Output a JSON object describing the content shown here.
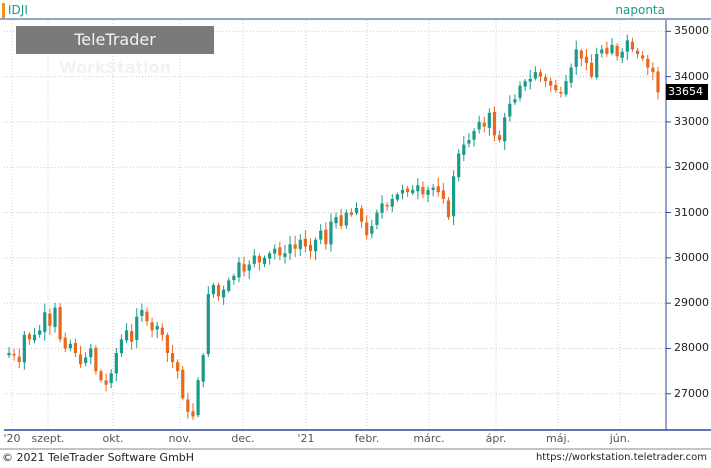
{
  "header": {
    "symbol": "IDJI",
    "period": "naponta",
    "logo_regular": "TeleTrader ",
    "logo_bold": "WorkStation"
  },
  "footer": {
    "copyright": "© 2021 TeleTrader Software GmbH",
    "url": "https://workstation.teletrader.com"
  },
  "colors": {
    "up": "#1a9a8a",
    "down": "#e8681e",
    "grid": "#cccccc",
    "axis": "#2b4a9a"
  },
  "chart_data": {
    "type": "candlestick",
    "y_axis_position": "right",
    "ylim": [
      26200,
      35250
    ],
    "yticks": [
      27000,
      28000,
      29000,
      30000,
      31000,
      32000,
      33000,
      34000,
      35000
    ],
    "ytick_labels": [
      "27000",
      "28000",
      "29000",
      "30000",
      "31000",
      "32000",
      "33000",
      "34000",
      "35000"
    ],
    "x_tick_labels": [
      "'20",
      "szept.",
      "okt.",
      "nov.",
      "dec.",
      "'21",
      "febr.",
      "márc.",
      "ápr.",
      "máj.",
      "jún."
    ],
    "last_value": 33654,
    "last_value_label": "33654",
    "closes": [
      27900,
      27850,
      27700,
      28300,
      28200,
      28300,
      28400,
      28800,
      28500,
      28900,
      28200,
      28000,
      28100,
      27900,
      27650,
      27800,
      28000,
      27500,
      27300,
      27200,
      27450,
      27900,
      28200,
      28400,
      28150,
      28700,
      28850,
      28600,
      28400,
      28500,
      28300,
      27900,
      27700,
      27500,
      26900,
      26600,
      26500,
      27300,
      27850,
      29200,
      29400,
      29150,
      29300,
      29500,
      29600,
      29900,
      29700,
      29850,
      30050,
      29900,
      30000,
      30100,
      30200,
      30050,
      30100,
      30300,
      30200,
      30400,
      30250,
      30150,
      30400,
      30600,
      30300,
      30800,
      30900,
      30700,
      31000,
      30950,
      31100,
      30800,
      30500,
      30700,
      31000,
      31200,
      31150,
      31300,
      31400,
      31500,
      31450,
      31500,
      31600,
      31400,
      31500,
      31550,
      31450,
      31300,
      30900,
      31800,
      32300,
      32500,
      32600,
      32800,
      33000,
      32900,
      33200,
      32700,
      32600,
      33100,
      33400,
      33500,
      33800,
      33900,
      33950,
      34100,
      34000,
      33900,
      33800,
      33700,
      33650,
      33900,
      34200,
      34600,
      34400,
      34300,
      34000,
      34500,
      34600,
      34500,
      34700,
      34450,
      34550,
      34800,
      34600,
      34500,
      34400,
      34200,
      34100,
      33654
    ]
  }
}
